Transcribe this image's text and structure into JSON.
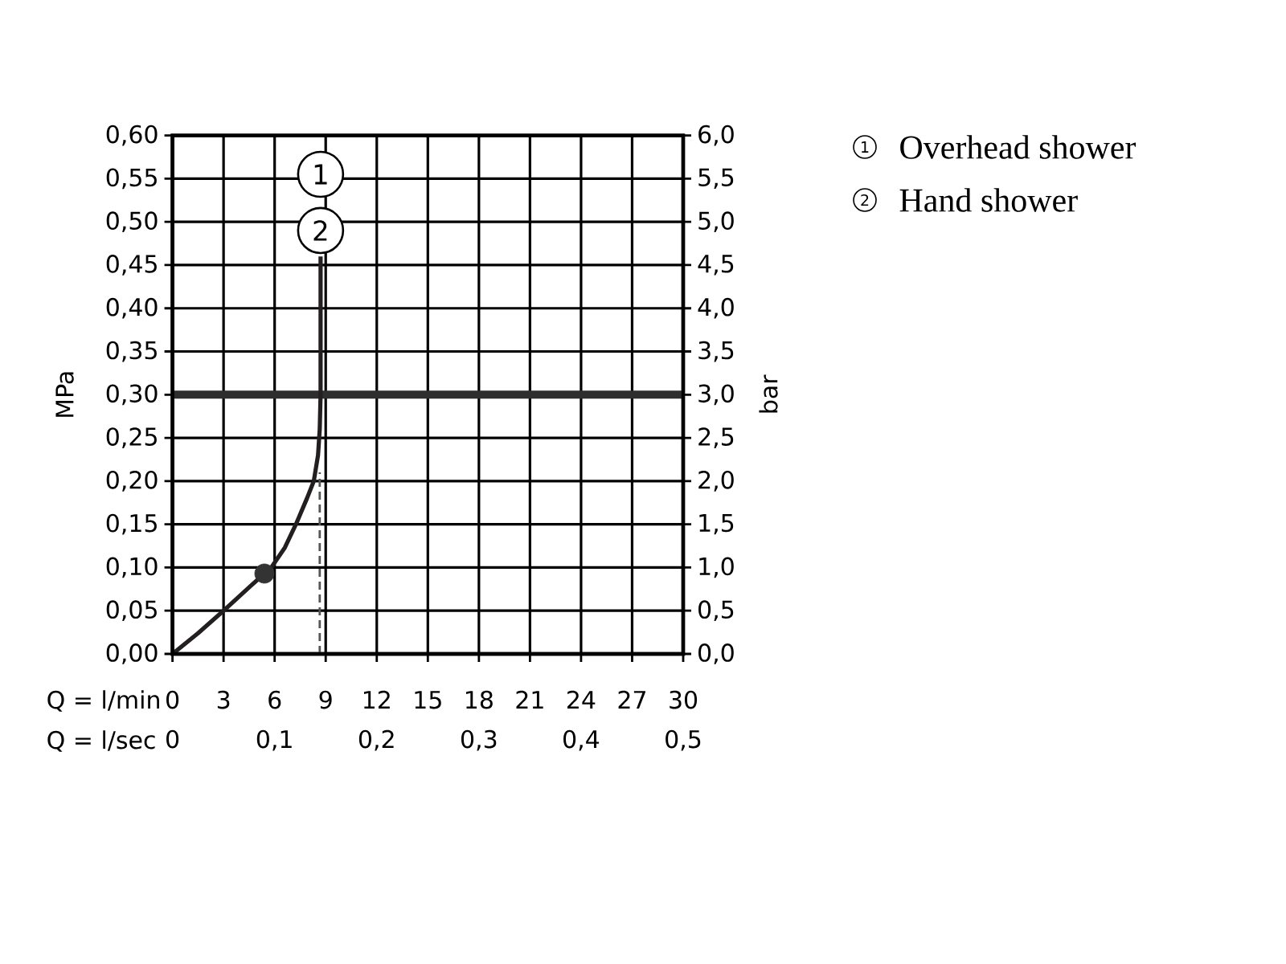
{
  "chart_data": {
    "type": "line",
    "xlabel": "Q = l/min",
    "ylabel": "MPa",
    "y2label": "bar",
    "x2label": "Q = l/sec",
    "xlim": [
      0,
      30
    ],
    "xticks": [
      0,
      3,
      6,
      9,
      12,
      15,
      18,
      21,
      24,
      27,
      30
    ],
    "ylim": [
      0,
      0.6
    ],
    "yticks": [
      {
        "value": 0,
        "label": "0,00"
      },
      {
        "value": 0.05,
        "label": "0,05"
      },
      {
        "value": 0.1,
        "label": "0,10"
      },
      {
        "value": 0.15,
        "label": "0,15"
      },
      {
        "value": 0.2,
        "label": "0,20"
      },
      {
        "value": 0.25,
        "label": "0,25"
      },
      {
        "value": 0.3,
        "label": "0,30"
      },
      {
        "value": 0.35,
        "label": "0,35"
      },
      {
        "value": 0.4,
        "label": "0,40"
      },
      {
        "value": 0.45,
        "label": "0,45"
      },
      {
        "value": 0.5,
        "label": "0,50"
      },
      {
        "value": 0.55,
        "label": "0,55"
      },
      {
        "value": 0.6,
        "label": "0,60"
      }
    ],
    "y2lim": [
      0,
      6
    ],
    "y2ticks": [
      {
        "value": 0,
        "label": "0,0"
      },
      {
        "value": 0.5,
        "label": "0,5"
      },
      {
        "value": 1,
        "label": "1,0"
      },
      {
        "value": 1.5,
        "label": "1,5"
      },
      {
        "value": 2,
        "label": "2,0"
      },
      {
        "value": 2.5,
        "label": "2,5"
      },
      {
        "value": 3,
        "label": "3,0"
      },
      {
        "value": 3.5,
        "label": "3,5"
      },
      {
        "value": 4,
        "label": "4,0"
      },
      {
        "value": 4.5,
        "label": "4,5"
      },
      {
        "value": 5,
        "label": "5,0"
      },
      {
        "value": 5.5,
        "label": "5,5"
      },
      {
        "value": 6,
        "label": "6,0"
      }
    ],
    "x2lim": [
      0,
      0.5
    ],
    "x2ticks": [
      0,
      {
        "value": 0.1,
        "label": "0,1"
      },
      {
        "value": 0.2,
        "label": "0,2"
      },
      {
        "value": 0.3,
        "label": "0,3"
      },
      {
        "value": 0.4,
        "label": "0,4"
      },
      {
        "value": 0.5,
        "label": "0,5"
      }
    ],
    "grid": true,
    "ref_lines": [
      {
        "axis": "y",
        "value": 0.3,
        "color": "#2e2e2e"
      }
    ],
    "series": [
      {
        "color": "#231f20",
        "x": [
          0,
          1.5,
          3,
          4.5,
          5.4,
          5.8,
          6.6,
          7.25,
          7.9,
          8.3,
          8.55,
          8.65,
          8.7,
          8.7
        ],
        "values": [
          0,
          0.024,
          0.05,
          0.077,
          0.093,
          0.1,
          0.123,
          0.15,
          0.18,
          0.2,
          0.23,
          0.26,
          0.3,
          0.46
        ]
      },
      {
        "type": "line",
        "line_style": "dashed",
        "color": "#555555",
        "x": [
          8.65,
          8.65
        ],
        "values": [
          0,
          0.21
        ]
      },
      {
        "type": "scatter",
        "marker": "circle",
        "color": "#333333",
        "x": [
          5.4
        ],
        "values": [
          0.093
        ]
      }
    ],
    "annotations": [
      {
        "text": "1",
        "x": 8.7,
        "y": 0.555
      },
      {
        "text": "2",
        "x": 8.7,
        "y": 0.49
      },
      "Overhead shower",
      "Hand shower"
    ]
  }
}
